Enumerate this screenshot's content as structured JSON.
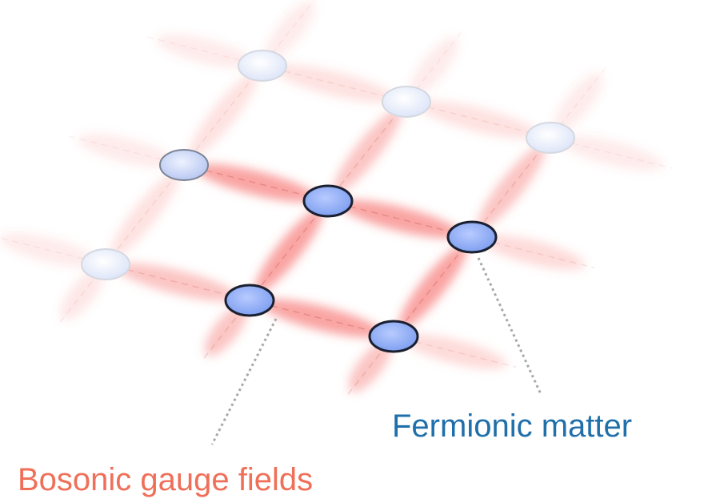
{
  "labels": {
    "fermionic": "Fermionic matter",
    "bosonic": "Bosonic gauge fields"
  }
}
